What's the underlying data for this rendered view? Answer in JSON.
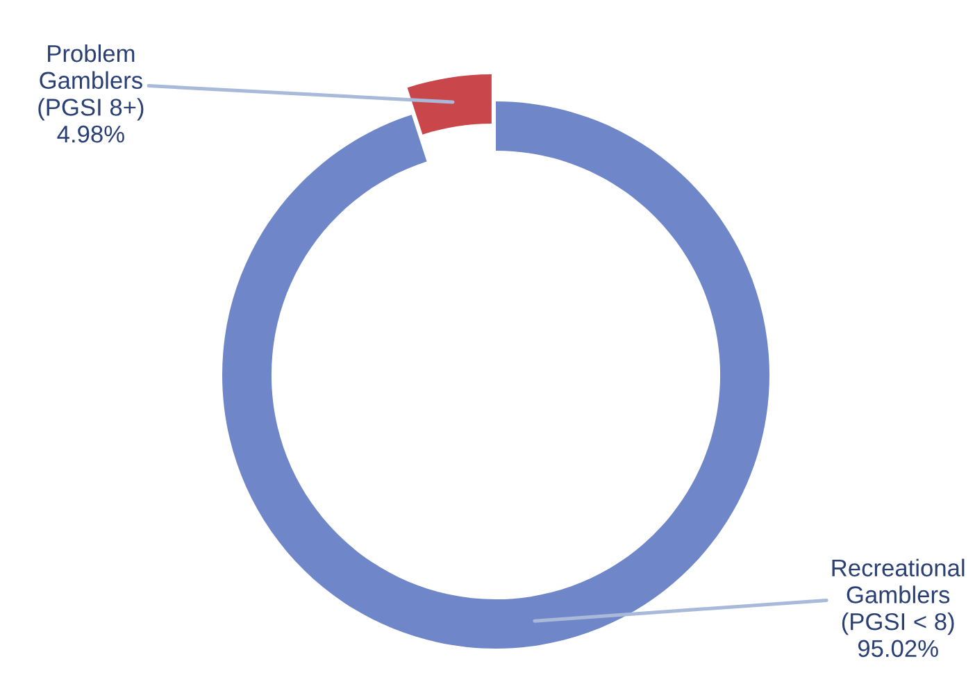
{
  "chart_data": {
    "type": "donut",
    "categories": [
      "Problem\nGamblers\n(PGSI 8+)",
      "Recreational\nGamblers\n(PGSI < 8)"
    ],
    "values": [
      4.98,
      95.02
    ],
    "colors": [
      "#c9474a",
      "#6f86c8"
    ],
    "value_labels": [
      "4.98%",
      "95.02%"
    ],
    "legend": false
  }
}
